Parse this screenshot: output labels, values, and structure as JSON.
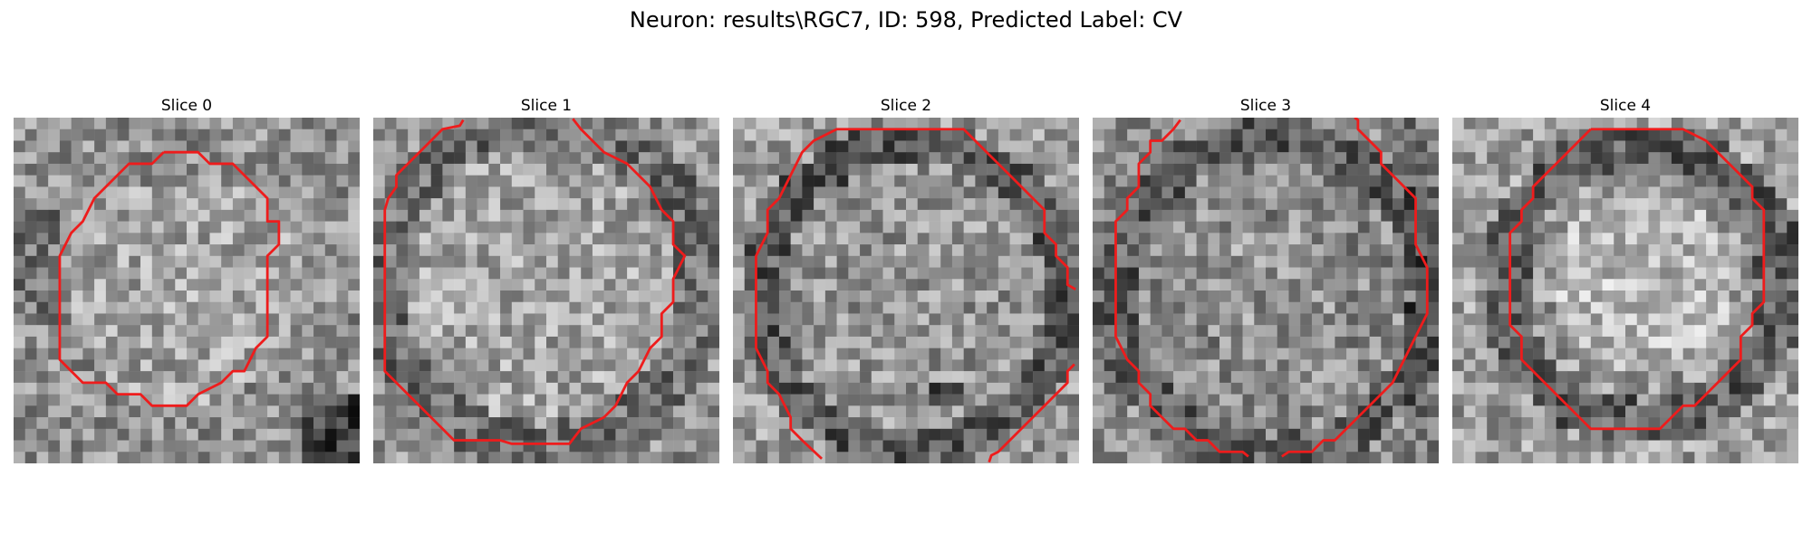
{
  "figure": {
    "title": "Neuron: results\\RGC7, ID: 598, Predicted Label: CV",
    "contour_color": "#ee1c1c",
    "colormap": "grayscale"
  },
  "panels": [
    {
      "title": "Slice 0",
      "tone": "cell_center_bright_right_dark_corner"
    },
    {
      "title": "Slice 1",
      "tone": "bright_cell_dark_rim"
    },
    {
      "title": "Slice 2",
      "tone": "cell_with_dark_ring"
    },
    {
      "title": "Slice 3",
      "tone": "cell_with_dark_ring_right"
    },
    {
      "title": "Slice 4",
      "tone": "bright_center_dark_band"
    }
  ]
}
